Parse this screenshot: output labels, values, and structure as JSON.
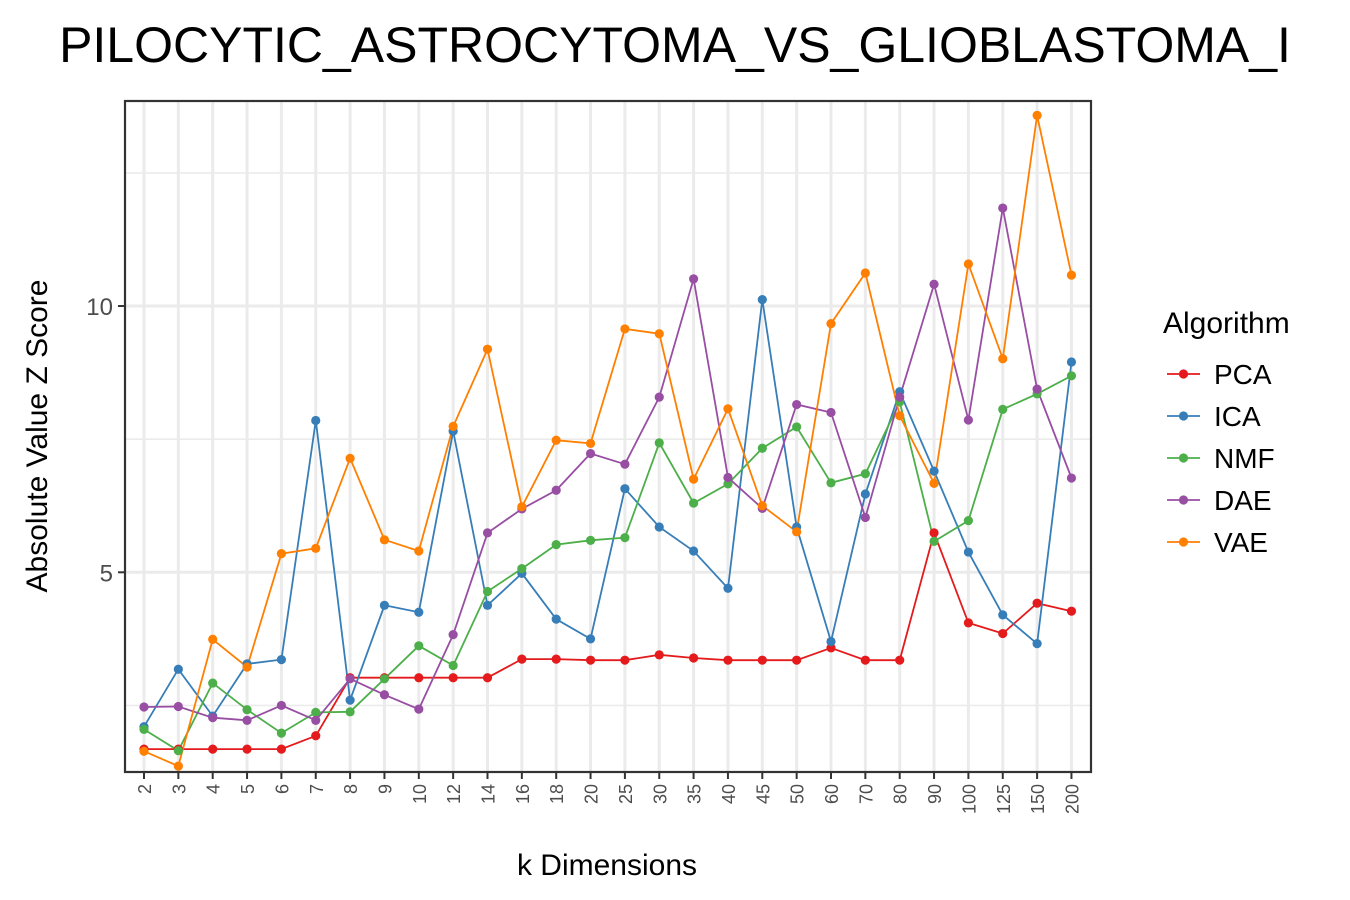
{
  "chart_data": {
    "type": "line",
    "title": "PILOCYTIC_ASTROCYTOMA_VS_GLIOBLASTOMA_I",
    "xlabel": "k Dimensions",
    "ylabel": "Absolute Value Z Score",
    "categories": [
      "2",
      "3",
      "4",
      "5",
      "6",
      "7",
      "8",
      "9",
      "10",
      "12",
      "14",
      "16",
      "18",
      "20",
      "25",
      "30",
      "35",
      "40",
      "45",
      "50",
      "60",
      "70",
      "80",
      "90",
      "100",
      "125",
      "150",
      "200"
    ],
    "y_ticks": [
      5,
      10
    ],
    "ylim": [
      1.25,
      13.85
    ],
    "grid": true,
    "legend": {
      "title": "Algorithm",
      "position": "right"
    },
    "series": [
      {
        "name": "PCA",
        "color": "#E41A1C",
        "values": [
          1.68,
          1.68,
          1.68,
          1.68,
          1.68,
          1.93,
          3.02,
          3.02,
          3.02,
          3.02,
          3.02,
          3.37,
          3.37,
          3.35,
          3.35,
          3.45,
          3.39,
          3.35,
          3.35,
          3.35,
          3.58,
          3.35,
          3.35,
          5.74,
          4.05,
          3.85,
          4.42,
          4.27
        ]
      },
      {
        "name": "ICA",
        "color": "#377EB8",
        "values": [
          2.1,
          3.18,
          2.3,
          3.28,
          3.36,
          7.85,
          2.6,
          4.38,
          4.25,
          7.65,
          4.38,
          4.98,
          4.12,
          3.75,
          6.57,
          5.85,
          5.4,
          4.7,
          10.12,
          5.85,
          3.7,
          6.47,
          8.39,
          6.9,
          5.38,
          4.2,
          3.66,
          8.95
        ]
      },
      {
        "name": "NMF",
        "color": "#4DAF4A",
        "values": [
          2.05,
          1.65,
          2.92,
          2.42,
          1.98,
          2.37,
          2.38,
          3.0,
          3.62,
          3.25,
          4.64,
          5.07,
          5.52,
          5.6,
          5.65,
          7.43,
          6.3,
          6.66,
          7.33,
          7.73,
          6.68,
          6.85,
          8.2,
          5.58,
          5.97,
          8.06,
          8.35,
          8.69
        ]
      },
      {
        "name": "DAE",
        "color": "#984EA3",
        "values": [
          2.47,
          2.48,
          2.27,
          2.22,
          2.5,
          2.22,
          3.0,
          2.7,
          2.43,
          3.83,
          5.74,
          6.19,
          6.54,
          7.23,
          7.03,
          8.29,
          10.51,
          6.78,
          6.2,
          8.15,
          8.0,
          6.03,
          8.29,
          10.41,
          7.86,
          11.84,
          8.44,
          6.77
        ]
      },
      {
        "name": "VAE",
        "color": "#FF7F00",
        "values": [
          1.64,
          1.36,
          3.74,
          3.22,
          5.35,
          5.45,
          7.14,
          5.61,
          5.4,
          7.74,
          9.19,
          6.23,
          7.48,
          7.42,
          9.57,
          9.48,
          6.75,
          8.07,
          6.25,
          5.76,
          9.67,
          10.62,
          7.94,
          6.67,
          10.79,
          9.01,
          13.58,
          10.58
        ]
      }
    ]
  }
}
